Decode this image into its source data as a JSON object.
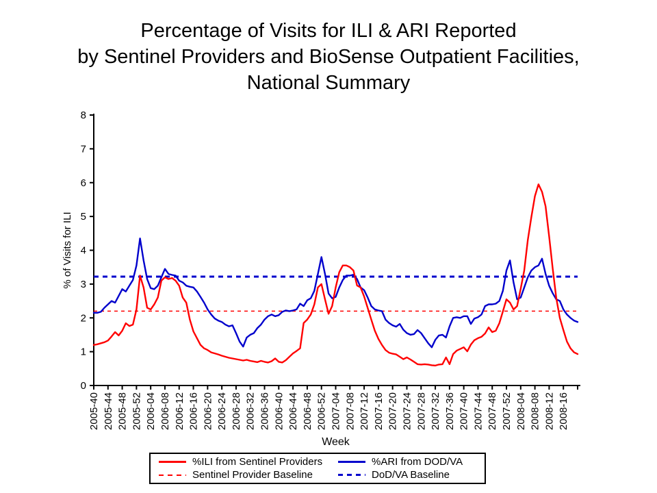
{
  "title": {
    "line1": "Percentage of Visits for ILI & ARI Reported",
    "line2": "by Sentinel Providers and BioSense Outpatient Facilities,",
    "line3": "National Summary"
  },
  "colors": {
    "ili_red": "#FF0000",
    "ari_blue": "#0000CC",
    "axis_black": "#000000",
    "background": "#FFFFFF"
  },
  "chart_data": {
    "type": "line",
    "title": "Percentage of Visits for ILI & ARI Reported by Sentinel Providers and BioSense Outpatient Facilities, National Summary",
    "xlabel": "Week",
    "ylabel": "% of Visits for ILI",
    "ylim": [
      0,
      8
    ],
    "y_ticks": [
      0,
      1,
      2,
      3,
      4,
      5,
      6,
      7,
      8
    ],
    "grid": false,
    "legend_position": "bottom",
    "x_tick_every": 4,
    "weeks_start": "2005-40",
    "weeks_end": "2008-20",
    "x_tick_labels": [
      "2005-40",
      "2005-44",
      "2005-48",
      "2005-52",
      "2006-04",
      "2006-08",
      "2006-12",
      "2006-16",
      "2006-20",
      "2006-24",
      "2006-28",
      "2006-32",
      "2006-36",
      "2006-40",
      "2006-44",
      "2006-48",
      "2006-52",
      "2007-04",
      "2007-08",
      "2007-12",
      "2007-16",
      "2007-20",
      "2007-24",
      "2007-28",
      "2007-32",
      "2007-36",
      "2007-40",
      "2007-44",
      "2007-48",
      "2007-52",
      "2008-04",
      "2008-08",
      "2008-12",
      "2008-16"
    ],
    "series": [
      {
        "name": "%ILI from Sentinel Providers",
        "color": "#FF0000",
        "style": "solid",
        "values": [
          1.2,
          1.22,
          1.25,
          1.28,
          1.33,
          1.45,
          1.58,
          1.48,
          1.62,
          1.84,
          1.76,
          1.8,
          2.25,
          3.25,
          2.9,
          2.3,
          2.25,
          2.4,
          2.6,
          3.1,
          3.2,
          3.15,
          3.18,
          3.1,
          2.95,
          2.6,
          2.45,
          1.95,
          1.6,
          1.4,
          1.2,
          1.1,
          1.05,
          0.98,
          0.95,
          0.92,
          0.88,
          0.85,
          0.82,
          0.8,
          0.78,
          0.76,
          0.74,
          0.76,
          0.73,
          0.71,
          0.69,
          0.73,
          0.7,
          0.68,
          0.72,
          0.8,
          0.7,
          0.68,
          0.75,
          0.85,
          0.95,
          1.02,
          1.1,
          1.85,
          1.95,
          2.1,
          2.4,
          2.9,
          3.0,
          2.55,
          2.12,
          2.35,
          2.9,
          3.35,
          3.55,
          3.55,
          3.5,
          3.4,
          2.96,
          2.9,
          2.63,
          2.29,
          1.95,
          1.62,
          1.38,
          1.2,
          1.05,
          0.97,
          0.94,
          0.92,
          0.85,
          0.78,
          0.83,
          0.77,
          0.7,
          0.63,
          0.62,
          0.63,
          0.62,
          0.6,
          0.59,
          0.62,
          0.63,
          0.83,
          0.63,
          0.93,
          1.03,
          1.08,
          1.13,
          1.01,
          1.21,
          1.34,
          1.4,
          1.44,
          1.54,
          1.72,
          1.58,
          1.62,
          1.84,
          2.19,
          2.55,
          2.45,
          2.25,
          2.35,
          2.86,
          3.4,
          4.3,
          4.98,
          5.6,
          5.95,
          5.73,
          5.3,
          4.41,
          3.46,
          2.59,
          2.0,
          1.64,
          1.3,
          1.1,
          0.98,
          0.93
        ]
      },
      {
        "name": "%ARI from DOD/VA",
        "color": "#0000CC",
        "style": "solid",
        "values": [
          2.15,
          2.15,
          2.18,
          2.3,
          2.4,
          2.5,
          2.45,
          2.65,
          2.85,
          2.78,
          2.95,
          3.12,
          3.55,
          4.35,
          3.7,
          3.15,
          2.88,
          2.85,
          2.95,
          3.2,
          3.45,
          3.3,
          3.27,
          3.25,
          3.1,
          3.05,
          2.95,
          2.92,
          2.9,
          2.78,
          2.62,
          2.45,
          2.25,
          2.1,
          1.98,
          1.92,
          1.88,
          1.8,
          1.75,
          1.78,
          1.55,
          1.3,
          1.15,
          1.42,
          1.5,
          1.55,
          1.7,
          1.8,
          1.95,
          2.05,
          2.1,
          2.05,
          2.08,
          2.18,
          2.22,
          2.2,
          2.22,
          2.25,
          2.42,
          2.35,
          2.52,
          2.58,
          2.8,
          3.3,
          3.8,
          3.3,
          2.72,
          2.58,
          2.62,
          2.9,
          3.12,
          3.25,
          3.25,
          3.28,
          3.15,
          2.9,
          2.82,
          2.6,
          2.35,
          2.25,
          2.22,
          2.2,
          1.95,
          1.85,
          1.78,
          1.74,
          1.82,
          1.65,
          1.55,
          1.5,
          1.52,
          1.64,
          1.55,
          1.4,
          1.25,
          1.13,
          1.35,
          1.48,
          1.5,
          1.42,
          1.75,
          2.0,
          2.02,
          2.0,
          2.05,
          2.05,
          1.82,
          1.98,
          2.02,
          2.1,
          2.35,
          2.4,
          2.4,
          2.42,
          2.5,
          2.8,
          3.4,
          3.7,
          3.05,
          2.55,
          2.6,
          2.9,
          3.2,
          3.4,
          3.5,
          3.55,
          3.75,
          3.3,
          2.95,
          2.73,
          2.55,
          2.5,
          2.25,
          2.1,
          2.0,
          1.92,
          1.88
        ]
      },
      {
        "name": "Sentinel Provider Baseline",
        "color": "#FF0000",
        "style": "dashed",
        "value": 2.2
      },
      {
        "name": "DoD/VA Baseline",
        "color": "#0000CC",
        "style": "dashed",
        "value": 3.22
      }
    ]
  }
}
